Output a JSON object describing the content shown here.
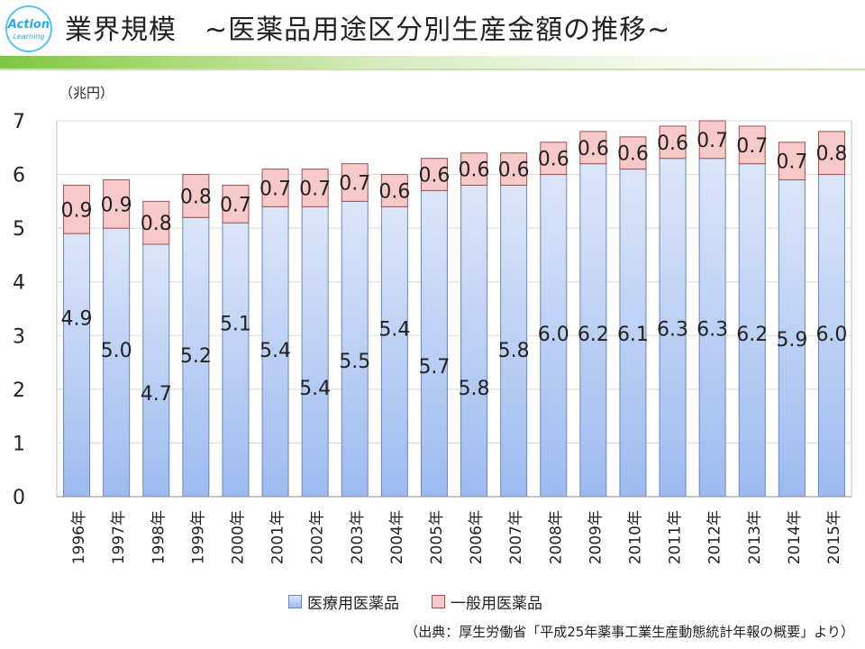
{
  "header": {
    "logo_line1": "Action",
    "logo_line2": "Learning",
    "title": "業界規模　~医薬品用途区分別生産金額の推移~"
  },
  "legend": {
    "series1": "医療用医薬品",
    "series2": "一般用医薬品"
  },
  "source": "（出典：厚生労働省「平成25年薬事工業生産動態統計年報の概要」より）",
  "colors": {
    "series1_top": "#dbe6f8",
    "series1_bottom": "#9dbaf0",
    "series1_border": "#6c88b5",
    "series2_fill": "#f7c9c9",
    "series2_border": "#a05050",
    "grid": "#d9d9d9"
  },
  "chart_data": {
    "type": "bar",
    "stacked": true,
    "unit_label": "（兆円）",
    "categories": [
      "1996年",
      "1997年",
      "1998年",
      "1999年",
      "2000年",
      "2001年",
      "2002年",
      "2003年",
      "2004年",
      "2005年",
      "2006年",
      "2007年",
      "2008年",
      "2009年",
      "2010年",
      "2011年",
      "2012年",
      "2013年",
      "2014年",
      "2015年"
    ],
    "series": [
      {
        "name": "医療用医薬品",
        "values": [
          4.9,
          5.0,
          4.7,
          5.2,
          5.1,
          5.4,
          5.4,
          5.5,
          5.4,
          5.7,
          5.8,
          5.8,
          6.0,
          6.2,
          6.1,
          6.3,
          6.3,
          6.2,
          5.9,
          6.0
        ]
      },
      {
        "name": "一般用医薬品",
        "values": [
          0.9,
          0.9,
          0.8,
          0.8,
          0.7,
          0.7,
          0.7,
          0.7,
          0.6,
          0.6,
          0.6,
          0.6,
          0.6,
          0.6,
          0.6,
          0.6,
          0.7,
          0.7,
          0.7,
          0.8
        ]
      }
    ],
    "ylim": [
      0,
      7
    ],
    "yticks": [
      "0",
      "1",
      "2",
      "3",
      "4",
      "5",
      "6",
      "7"
    ],
    "grid": true,
    "legend_position": "bottom"
  }
}
